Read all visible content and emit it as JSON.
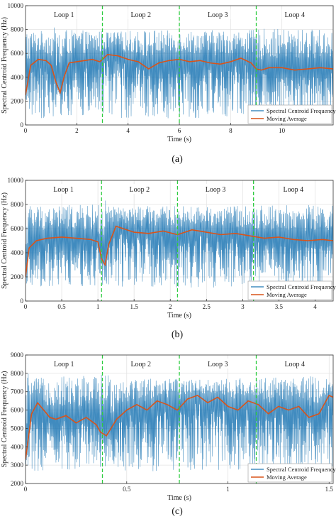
{
  "chart_data": [
    {
      "type": "line",
      "caption": "(a)",
      "xlabel": "Time (s)",
      "ylabel": "Spectral Centroid Frequency (Hz)",
      "xlim": [
        0,
        12
      ],
      "ylim": [
        0,
        10000
      ],
      "xticks": [
        0,
        2,
        4,
        6,
        8,
        10
      ],
      "yticks": [
        0,
        2000,
        4000,
        6000,
        8000,
        10000
      ],
      "grid": true,
      "legend_position": "bottom-right",
      "series": [
        {
          "name": "Spectral Centroid Frequency",
          "color": "#1f77b4"
        },
        {
          "name": "Moving Average",
          "color": "#d95319",
          "x": [
            0,
            0.2,
            0.5,
            0.8,
            1.0,
            1.2,
            1.35,
            1.5,
            1.7,
            2.0,
            2.3,
            2.6,
            2.9,
            3.2,
            3.6,
            4.0,
            4.4,
            4.8,
            5.2,
            5.6,
            6.0,
            6.4,
            6.8,
            7.2,
            7.6,
            8.0,
            8.4,
            8.8,
            9.0,
            9.2,
            9.5,
            10.0,
            10.5,
            11.0,
            11.5,
            12.0
          ],
          "values": [
            2500,
            5000,
            5500,
            5400,
            5000,
            3500,
            2700,
            4000,
            5200,
            5300,
            5400,
            5500,
            5300,
            5900,
            5800,
            5500,
            5300,
            4700,
            5200,
            5400,
            5500,
            5300,
            5400,
            5200,
            5100,
            5300,
            5600,
            5200,
            4700,
            4600,
            4800,
            4800,
            4600,
            4700,
            4800,
            4700
          ]
        }
      ],
      "loops": [
        {
          "label": "Loop 1",
          "start": 0,
          "end": 3.0
        },
        {
          "label": "Loop 2",
          "start": 3.0,
          "end": 6.0
        },
        {
          "label": "Loop 3",
          "start": 6.0,
          "end": 9.0
        },
        {
          "label": "Loop 4",
          "start": 9.0,
          "end": 12.0
        }
      ],
      "boundaries": [
        3.0,
        6.0,
        9.0
      ],
      "raw_envelope": {
        "upper": 7500,
        "lower": 1000
      }
    },
    {
      "type": "line",
      "caption": "(b)",
      "xlabel": "Time (s)",
      "ylabel": "Spectral Centroid Frequency (Hz)",
      "xlim": [
        0,
        4.25
      ],
      "ylim": [
        0,
        10000
      ],
      "xticks": [
        0,
        0.5,
        1,
        1.5,
        2,
        2.5,
        3,
        3.5,
        4
      ],
      "yticks": [
        0,
        2000,
        4000,
        6000,
        8000,
        10000
      ],
      "grid": true,
      "legend_position": "bottom-right",
      "series": [
        {
          "name": "Spectral Centroid Frequency",
          "color": "#1f77b4"
        },
        {
          "name": "Moving Average",
          "color": "#d95319",
          "x": [
            0,
            0.05,
            0.15,
            0.3,
            0.5,
            0.7,
            0.9,
            1.0,
            1.05,
            1.1,
            1.15,
            1.25,
            1.35,
            1.5,
            1.7,
            1.9,
            2.1,
            2.3,
            2.5,
            2.7,
            2.9,
            3.1,
            3.3,
            3.5,
            3.7,
            3.9,
            4.1,
            4.25
          ],
          "values": [
            2000,
            4400,
            5000,
            5200,
            5300,
            5200,
            5100,
            4900,
            3500,
            3000,
            4700,
            6200,
            6000,
            5700,
            5600,
            5800,
            5500,
            5900,
            5700,
            5500,
            5600,
            5400,
            5200,
            5300,
            5100,
            5000,
            5100,
            5000
          ]
        }
      ],
      "loops": [
        {
          "label": "Loop 1",
          "start": 0,
          "end": 1.05
        },
        {
          "label": "Loop 2",
          "start": 1.05,
          "end": 2.1
        },
        {
          "label": "Loop 3",
          "start": 2.1,
          "end": 3.15
        },
        {
          "label": "Loop 4",
          "start": 3.15,
          "end": 4.25
        }
      ],
      "boundaries": [
        1.05,
        2.1,
        3.15
      ],
      "raw_envelope": {
        "upper": 7500,
        "lower": 1500
      }
    },
    {
      "type": "line",
      "caption": "(c)",
      "xlabel": "Time (s)",
      "ylabel": "Spectral Centroid Frequency (Hz)",
      "xlim": [
        0,
        1.52
      ],
      "ylim": [
        2000,
        9000
      ],
      "xticks": [
        0,
        0.5,
        1,
        1.5
      ],
      "yticks": [
        2000,
        3000,
        4000,
        5000,
        6000,
        7000,
        8000,
        9000
      ],
      "grid": true,
      "legend_position": "bottom-right",
      "series": [
        {
          "name": "Spectral Centroid Frequency",
          "color": "#1f77b4"
        },
        {
          "name": "Moving Average",
          "color": "#d95319",
          "x": [
            0,
            0.03,
            0.06,
            0.09,
            0.12,
            0.15,
            0.2,
            0.25,
            0.3,
            0.35,
            0.37,
            0.4,
            0.45,
            0.5,
            0.55,
            0.6,
            0.65,
            0.7,
            0.75,
            0.8,
            0.85,
            0.9,
            0.95,
            1.0,
            1.05,
            1.1,
            1.15,
            1.2,
            1.25,
            1.3,
            1.35,
            1.4,
            1.45,
            1.5,
            1.52
          ],
          "values": [
            3300,
            5800,
            6400,
            6000,
            5600,
            5500,
            5700,
            5300,
            5600,
            5200,
            4800,
            4600,
            5500,
            6000,
            6300,
            6000,
            6500,
            6300,
            6000,
            6600,
            6800,
            6400,
            6700,
            6200,
            6000,
            6500,
            6300,
            5800,
            6200,
            6000,
            6200,
            5600,
            5800,
            6800,
            6700
          ]
        }
      ],
      "loops": [
        {
          "label": "Loop 1",
          "start": 0,
          "end": 0.38
        },
        {
          "label": "Loop 2",
          "start": 0.38,
          "end": 0.76
        },
        {
          "label": "Loop 3",
          "start": 0.76,
          "end": 1.14
        },
        {
          "label": "Loop 4",
          "start": 1.14,
          "end": 1.52
        }
      ],
      "boundaries": [
        0.38,
        0.76,
        1.14
      ],
      "raw_envelope": {
        "upper": 7500,
        "lower": 3000
      }
    }
  ]
}
